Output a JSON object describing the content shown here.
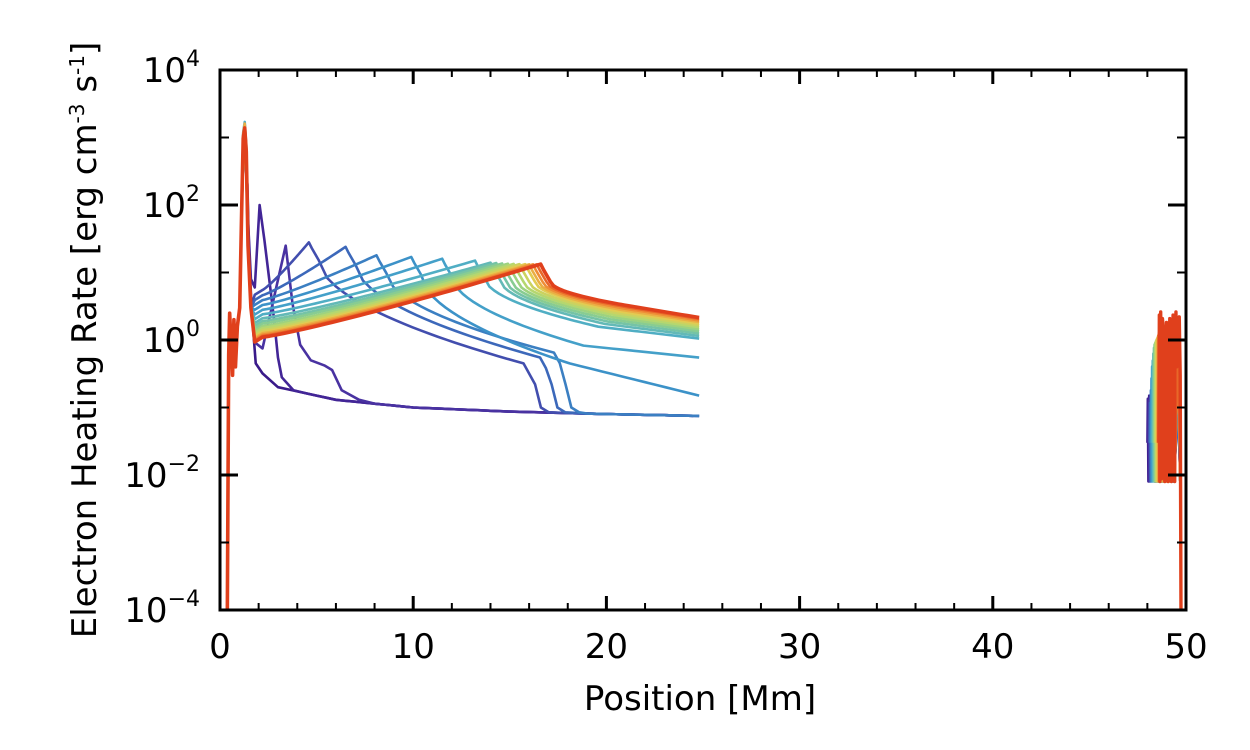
{
  "chart_data": {
    "type": "line",
    "title": "",
    "xlabel": "Position [Mm]",
    "ylabel": {
      "prefix": "Electron Heating Rate [erg cm",
      "exp1": "-3",
      "mid": " s",
      "exp2": "-1",
      "suffix": "]"
    },
    "x_scale": "linear",
    "y_scale": "log",
    "xlim": [
      0,
      50
    ],
    "ylim": [
      0.0001,
      10000
    ],
    "x_ticks": [
      0,
      10,
      20,
      30,
      40,
      50
    ],
    "x_tick_labels": [
      "0",
      "10",
      "20",
      "30",
      "40",
      "50"
    ],
    "y_ticks": [
      {
        "value": 0.0001,
        "base": "10",
        "exp": "−4"
      },
      {
        "value": 0.01,
        "base": "10",
        "exp": "−2"
      },
      {
        "value": 1,
        "base": "10",
        "exp": "0"
      },
      {
        "value": 100,
        "base": "10",
        "exp": "2"
      },
      {
        "value": 10000,
        "base": "10",
        "exp": "4"
      }
    ],
    "legend": "none",
    "series_count": 20,
    "colormap": [
      "#3a1a8a",
      "#4a2fa0",
      "#3c64b8",
      "#3a8ec8",
      "#49a9c9",
      "#6cbfb0",
      "#8fcf8a",
      "#bcd86a",
      "#e6c94f",
      "#f08a35",
      "#e0401c"
    ],
    "highlight_color": "#e0401c",
    "left_footpoint": {
      "spike_x": [
        0.4,
        0.9
      ],
      "peak_x": 1.25,
      "peak_values_range": [
        650,
        1800
      ]
    },
    "front_positions_mm": [
      1.4,
      2.2,
      3.4,
      4.6,
      6.5,
      8.1,
      9.9,
      11.5,
      13.2,
      14.0,
      14.3,
      14.6,
      14.9,
      15.2,
      15.5,
      15.8,
      16.0,
      16.2,
      16.4,
      16.6
    ],
    "front_peak_values": [
      1000,
      100,
      25,
      28,
      24,
      18,
      17,
      16,
      15,
      14,
      13.8,
      13.6,
      13.5,
      13.4,
      13.3,
      13.3,
      13.2,
      13.2,
      13.2,
      13.3
    ],
    "plateau_start_values": [
      0.4,
      0.45,
      0.7,
      5.5,
      4.6,
      3.9,
      3.3,
      2.8,
      2.4,
      2.1,
      1.9,
      1.75,
      1.6,
      1.5,
      1.4,
      1.32,
      1.26,
      1.2,
      1.15,
      1.1
    ],
    "tail_end_x": 24.8,
    "tail_end_values": [
      0.075,
      0.075,
      0.075,
      0.075,
      0.075,
      0.075,
      0.15,
      0.55,
      1.05,
      1.15,
      1.25,
      1.35,
      1.45,
      1.55,
      1.65,
      1.75,
      1.85,
      1.95,
      2.05,
      2.15
    ],
    "background_level": {
      "x": [
        3,
        6,
        10,
        15,
        20,
        24.8
      ],
      "y": [
        0.2,
        0.13,
        0.1,
        0.087,
        0.08,
        0.075
      ]
    },
    "right_footpoint": {
      "x_range": [
        48.0,
        49.7
      ],
      "min_value": 0.008,
      "max_value_series": [
        0.15,
        0.15,
        0.14,
        0.13,
        0.13,
        0.2,
        0.3,
        0.45,
        0.55,
        0.7,
        0.85,
        0.95,
        1.0,
        1.05,
        1.1,
        1.15,
        1.2,
        1.3,
        1.4,
        2.6
      ],
      "red_drop_x": 49.65
    }
  }
}
